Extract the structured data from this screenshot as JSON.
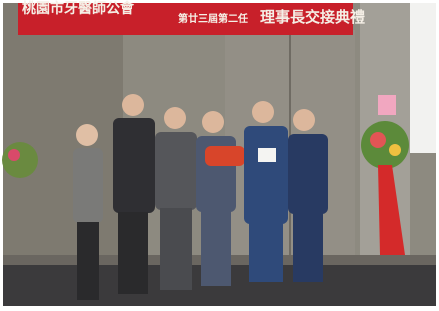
{
  "banner": {
    "left_text": "桃園市牙醫師公會",
    "term_text": "第廿三屆第二任",
    "right_text": "理事長交接典禮"
  }
}
